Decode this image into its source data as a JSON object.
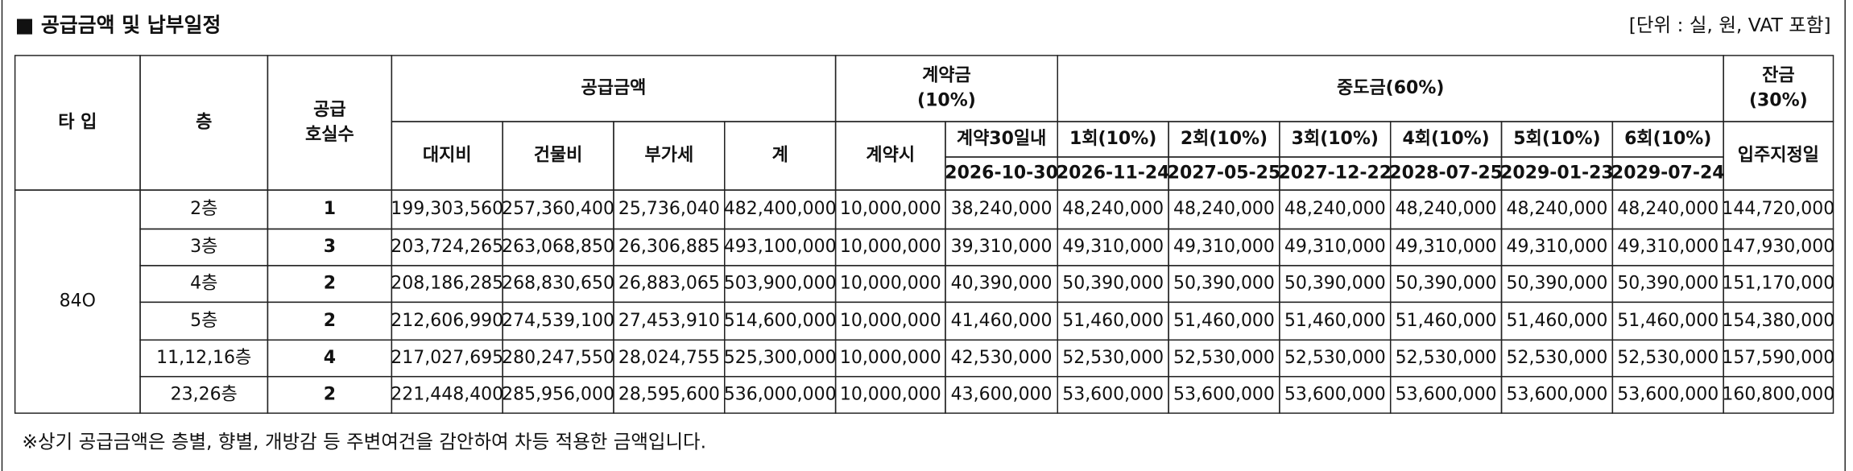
{
  "header": {
    "title": "■ 공급금액 및 납부일정",
    "unit": "[단위 : 실, 원, VAT 포함]"
  },
  "table": {
    "head": [
      {
        "lines": [
          "타 입"
        ]
      },
      {
        "lines": [
          "층"
        ]
      },
      {
        "lines": [
          "공급",
          "호실수"
        ]
      },
      {
        "lines": [
          "공급금액"
        ]
      },
      {
        "lines": [
          "계약금",
          "(10%)"
        ]
      },
      {
        "lines": [
          "중도금(60%)"
        ]
      },
      {
        "lines": [
          "잔금",
          "(30%)"
        ]
      },
      {
        "lines": [
          "대지비"
        ]
      },
      {
        "lines": [
          "건물비"
        ]
      },
      {
        "lines": [
          "부가세"
        ]
      },
      {
        "lines": [
          "계"
        ]
      },
      {
        "lines": [
          "계약시"
        ]
      },
      {
        "lines": [
          "계약30일내"
        ]
      },
      {
        "lines": [
          "1회(10%)"
        ]
      },
      {
        "lines": [
          "2회(10%)"
        ]
      },
      {
        "lines": [
          "3회(10%)"
        ]
      },
      {
        "lines": [
          "4회(10%)"
        ]
      },
      {
        "lines": [
          "5회(10%)"
        ]
      },
      {
        "lines": [
          "6회(10%)"
        ]
      },
      {
        "lines": [
          "입주지정일"
        ]
      },
      {
        "lines": [
          "2026-10-30"
        ]
      },
      {
        "lines": [
          "2026-11-24"
        ]
      },
      {
        "lines": [
          "2027-05-25"
        ]
      },
      {
        "lines": [
          "2027-12-22"
        ]
      },
      {
        "lines": [
          "2028-07-25"
        ]
      },
      {
        "lines": [
          "2029-01-23"
        ]
      },
      {
        "lines": [
          "2029-07-24"
        ]
      }
    ],
    "type": "84O",
    "rows": [
      [
        "2층",
        "1",
        "199,303,560",
        "257,360,400",
        "25,736,040",
        "482,400,000",
        "10,000,000",
        "38,240,000",
        "48,240,000",
        "48,240,000",
        "48,240,000",
        "48,240,000",
        "48,240,000",
        "48,240,000",
        "144,720,000"
      ],
      [
        "3층",
        "3",
        "203,724,265",
        "263,068,850",
        "26,306,885",
        "493,100,000",
        "10,000,000",
        "39,310,000",
        "49,310,000",
        "49,310,000",
        "49,310,000",
        "49,310,000",
        "49,310,000",
        "49,310,000",
        "147,930,000"
      ],
      [
        "4층",
        "2",
        "208,186,285",
        "268,830,650",
        "26,883,065",
        "503,900,000",
        "10,000,000",
        "40,390,000",
        "50,390,000",
        "50,390,000",
        "50,390,000",
        "50,390,000",
        "50,390,000",
        "50,390,000",
        "151,170,000"
      ],
      [
        "5층",
        "2",
        "212,606,990",
        "274,539,100",
        "27,453,910",
        "514,600,000",
        "10,000,000",
        "41,460,000",
        "51,460,000",
        "51,460,000",
        "51,460,000",
        "51,460,000",
        "51,460,000",
        "51,460,000",
        "154,380,000"
      ],
      [
        "11,12,16층",
        "4",
        "217,027,695",
        "280,247,550",
        "28,024,755",
        "525,300,000",
        "10,000,000",
        "42,530,000",
        "52,530,000",
        "52,530,000",
        "52,530,000",
        "52,530,000",
        "52,530,000",
        "52,530,000",
        "157,590,000"
      ],
      [
        "23,26층",
        "2",
        "221,448,400",
        "285,956,000",
        "28,595,600",
        "536,000,000",
        "10,000,000",
        "43,600,000",
        "53,600,000",
        "53,600,000",
        "53,600,000",
        "53,600,000",
        "53,600,000",
        "53,600,000",
        "160,800,000"
      ]
    ]
  },
  "note": "※상기 공급금액은 층별, 향별, 개방감 등 주변여건을 감안하여 차등 적용한 금액입니다."
}
